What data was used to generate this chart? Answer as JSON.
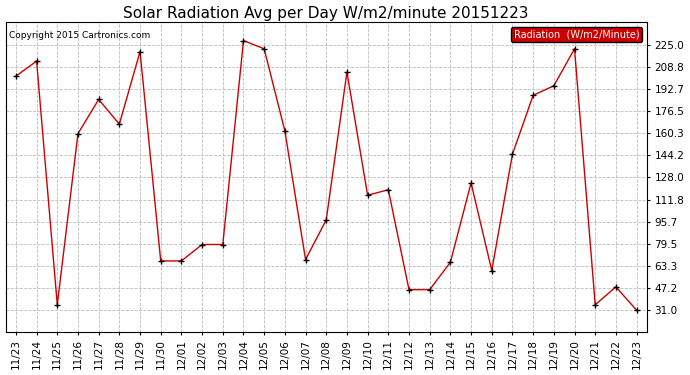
{
  "title": "Solar Radiation Avg per Day W/m2/minute 20151223",
  "copyright": "Copyright 2015 Cartronics.com",
  "legend_label": "Radiation  (W/m2/Minute)",
  "dates": [
    "11/23",
    "11/24",
    "11/25",
    "11/26",
    "11/27",
    "11/28",
    "11/29",
    "11/30",
    "12/01",
    "12/02",
    "12/03",
    "12/04",
    "12/05",
    "12/06",
    "12/07",
    "12/08",
    "12/09",
    "12/10",
    "12/11",
    "12/12",
    "12/13",
    "12/14",
    "12/15",
    "12/16",
    "12/17",
    "12/18",
    "12/19",
    "12/20",
    "12/21",
    "12/22",
    "12/23"
  ],
  "values": [
    202,
    213,
    35,
    160,
    185,
    167,
    220,
    67,
    67,
    79,
    79,
    228,
    222,
    162,
    68,
    97,
    205,
    115,
    119,
    46,
    46,
    66,
    124,
    60,
    145,
    188,
    195,
    222,
    35,
    48,
    31
  ],
  "line_color": "#cc0000",
  "marker_color": "#000000",
  "bg_color": "#ffffff",
  "grid_color": "#bbbbbb",
  "ylim_min": 15.2,
  "ylim_max": 241.8,
  "yticks": [
    31.0,
    47.2,
    63.3,
    79.5,
    95.7,
    111.8,
    128.0,
    144.2,
    160.3,
    176.5,
    192.7,
    208.8,
    225.0
  ],
  "title_fontsize": 11,
  "tick_fontsize": 7.5,
  "legend_bg": "#cc0000",
  "legend_text_color": "#ffffff"
}
